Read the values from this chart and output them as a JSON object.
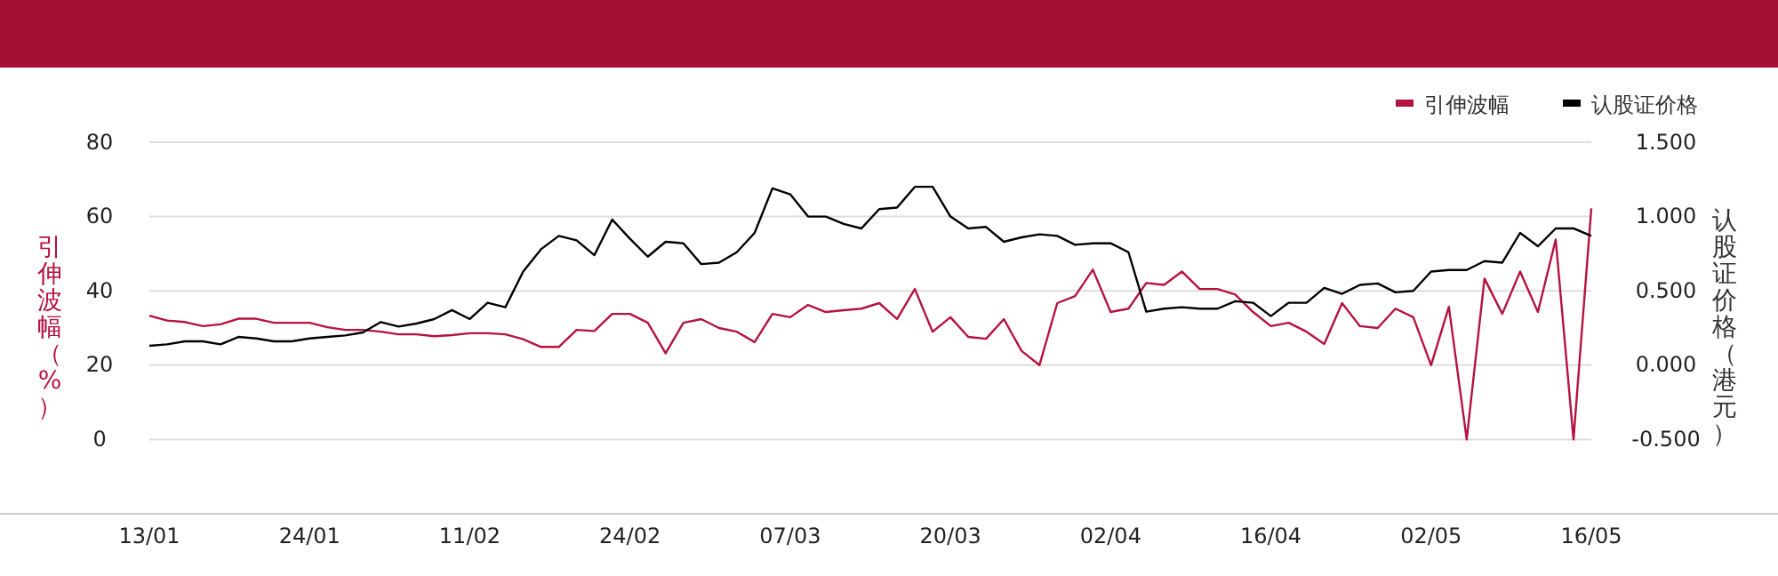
{
  "chart_data": {
    "type": "line",
    "ylabel": "引伸波幅（%）",
    "y2label": "认股证价格（港元）",
    "categories": [
      "13/01",
      null,
      null,
      null,
      null,
      null,
      null,
      null,
      null,
      "24/01",
      null,
      null,
      null,
      null,
      null,
      null,
      null,
      null,
      "11/02",
      null,
      null,
      null,
      null,
      null,
      null,
      null,
      null,
      "24/02",
      null,
      null,
      null,
      null,
      null,
      null,
      null,
      null,
      "07/03",
      null,
      null,
      null,
      null,
      null,
      null,
      null,
      null,
      "20/03",
      null,
      null,
      null,
      null,
      null,
      null,
      null,
      null,
      "02/04",
      null,
      null,
      null,
      null,
      null,
      null,
      null,
      null,
      "16/04",
      null,
      null,
      null,
      null,
      null,
      null,
      null,
      null,
      "02/05",
      null,
      null,
      null,
      null,
      null,
      null,
      null,
      null,
      "16/05"
    ],
    "series": [
      {
        "name": "引伸波幅",
        "color": "#b5123f",
        "values": [
          33.3,
          32,
          31.6,
          30.5,
          31,
          32.5,
          32.5,
          31.4,
          31.4,
          31.4,
          30.2,
          29.5,
          29.5,
          29,
          28.3,
          28.3,
          27.8,
          28.1,
          28.6,
          28.6,
          28.3,
          27,
          24.9,
          24.9,
          29.5,
          29.2,
          33.8,
          33.8,
          31.4,
          23.2,
          31.4,
          32.4,
          30,
          29,
          26.2,
          33.8,
          32.9,
          36.2,
          34.3,
          34.8,
          35.2,
          36.7,
          32.4,
          40.5,
          29,
          32.9,
          27.6,
          27.1,
          32.4,
          23.8,
          20,
          36.7,
          38.6,
          45.7,
          34.3,
          35.2,
          42.1,
          41.6,
          45.2,
          40.5,
          40.5,
          39,
          34.3,
          30.5,
          31.4,
          29,
          25.7,
          36.7,
          30.5,
          30,
          35.2,
          32.9,
          20,
          35.7,
          0,
          43.3,
          33.8,
          45.2,
          34.3,
          53.8,
          0,
          62.2
        ]
      },
      {
        "name": "认股证价格",
        "color": "#000000",
        "axis": "y2",
        "values": [
          0.13,
          0.14,
          0.16,
          0.16,
          0.14,
          0.19,
          0.18,
          0.16,
          0.16,
          0.18,
          0.19,
          0.2,
          0.22,
          0.29,
          0.26,
          0.28,
          0.31,
          0.37,
          0.31,
          0.42,
          0.39,
          0.63,
          0.78,
          0.87,
          0.84,
          0.74,
          0.98,
          0.85,
          0.73,
          0.83,
          0.82,
          0.68,
          0.69,
          0.76,
          0.89,
          1.19,
          1.15,
          1.0,
          1.0,
          0.95,
          0.92,
          1.05,
          1.06,
          1.2,
          1.2,
          1.0,
          0.92,
          0.93,
          0.83,
          0.86,
          0.88,
          0.87,
          0.81,
          0.82,
          0.82,
          0.76,
          0.36,
          0.38,
          0.39,
          0.38,
          0.38,
          0.43,
          0.42,
          0.33,
          0.42,
          0.42,
          0.52,
          0.48,
          0.54,
          0.55,
          0.49,
          0.5,
          0.63,
          0.64,
          0.64,
          0.7,
          0.69,
          0.89,
          0.8,
          0.92,
          0.92,
          0.87
        ]
      }
    ],
    "ylim": [
      -20,
      80
    ],
    "yticks": [
      0,
      20,
      40,
      60,
      80
    ],
    "y2lim": [
      -1,
      1.5
    ],
    "y2ticks": [
      {
        "value": -0.5,
        "label": "-0.500"
      },
      {
        "value": 0,
        "label": "0.000"
      },
      {
        "value": 0.5,
        "label": "0.500"
      },
      {
        "value": 1,
        "label": "1.000"
      },
      {
        "value": 1.5,
        "label": "1.500"
      }
    ],
    "grid": "y",
    "legend": "top right",
    "marker": "none",
    "line_style": "solid"
  }
}
